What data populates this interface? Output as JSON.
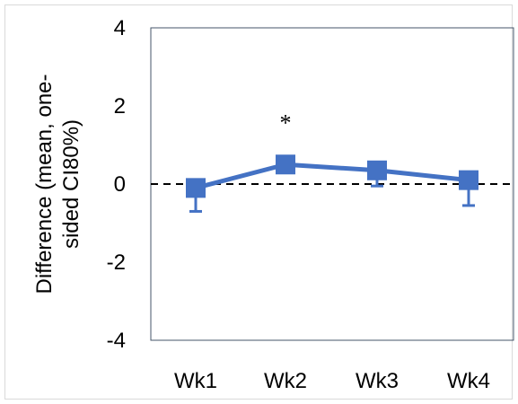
{
  "chart_data": {
    "type": "line",
    "title": "",
    "xlabel": "",
    "ylabel": [
      "Difference (mean, one-",
      "sided CI80%)"
    ],
    "categories": [
      "Wk1",
      "Wk2",
      "Wk3",
      "Wk4"
    ],
    "series": [
      {
        "values": [
          -0.1,
          0.5,
          0.35,
          0.1
        ],
        "error_lower": [
          -0.7,
          0.3,
          -0.05,
          -0.55
        ],
        "color": "#4472C4",
        "marker": "square"
      }
    ],
    "ylim": [
      -4,
      4
    ],
    "yticks": [
      "4",
      "2",
      "0",
      "-2",
      "-4"
    ],
    "reference_line": {
      "y": 0,
      "style": "dashed",
      "color": "#000000"
    },
    "annotations": [
      {
        "text": "*",
        "category": "Wk2"
      }
    ],
    "grid": false,
    "legend": "none"
  }
}
